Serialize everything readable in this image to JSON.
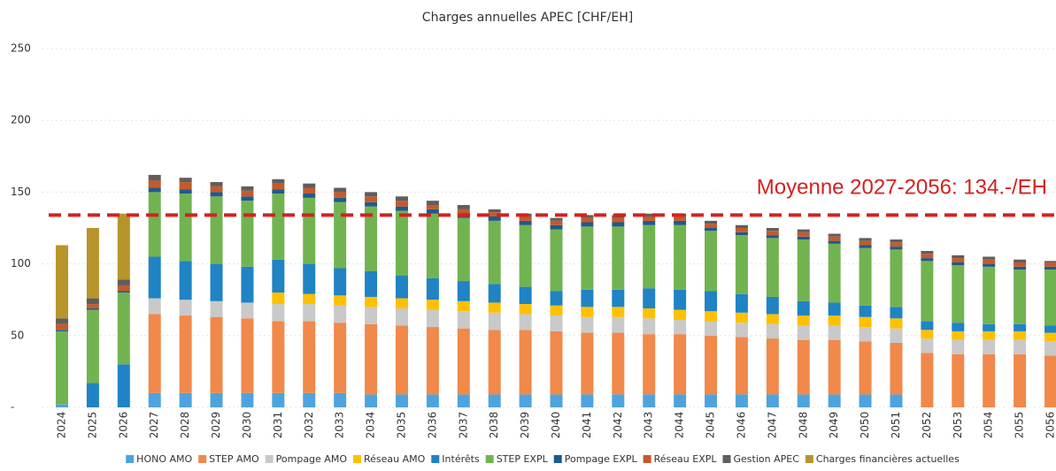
{
  "chart_data": {
    "type": "stacked_bar",
    "title": "Charges annuelles APEC [CHF/EH]",
    "annotation": "Moyenne 2027-2056: 134.-/EH",
    "mean_line": 134,
    "mean_line_color": "#d62020",
    "categories": [
      "2024",
      "2025",
      "2026",
      "2027",
      "2028",
      "2029",
      "2030",
      "2031",
      "2032",
      "2033",
      "2034",
      "2035",
      "2036",
      "2037",
      "2038",
      "2039",
      "2040",
      "2041",
      "2042",
      "2043",
      "2044",
      "2045",
      "2046",
      "2047",
      "2048",
      "2049",
      "2050",
      "2051",
      "2052",
      "2053",
      "2054",
      "2055",
      "2056"
    ],
    "ylim": [
      0,
      250
    ],
    "yticks": [
      {
        "value": 0,
        "label": "-"
      },
      50,
      100,
      150,
      200,
      250
    ],
    "grid": true,
    "series": [
      {
        "name": "HONO AMO",
        "color": "#4fa3dc",
        "values": [
          2,
          0,
          0,
          10,
          10,
          10,
          10,
          10,
          10,
          10,
          9,
          9,
          9,
          9,
          9,
          9,
          9,
          9,
          9,
          9,
          9,
          9,
          9,
          9,
          9,
          9,
          9,
          9,
          0,
          0,
          0,
          0,
          0
        ]
      },
      {
        "name": "STEP AMO",
        "color": "#f0894a",
        "values": [
          0,
          0,
          0,
          55,
          54,
          53,
          52,
          50,
          50,
          49,
          49,
          48,
          47,
          46,
          45,
          45,
          44,
          43,
          43,
          42,
          42,
          41,
          40,
          39,
          38,
          38,
          37,
          36,
          38,
          37,
          37,
          37,
          36
        ]
      },
      {
        "name": "Pompage AMO",
        "color": "#c9c9c9",
        "values": [
          0,
          0,
          0,
          11,
          11,
          11,
          11,
          12,
          12,
          12,
          12,
          12,
          12,
          12,
          12,
          11,
          11,
          11,
          11,
          11,
          10,
          10,
          10,
          10,
          10,
          10,
          10,
          10,
          10,
          10,
          10,
          10,
          10
        ]
      },
      {
        "name": "Réseau AMO",
        "color": "#ffc000",
        "values": [
          0,
          0,
          0,
          0,
          0,
          0,
          0,
          8,
          7,
          7,
          7,
          7,
          7,
          7,
          7,
          7,
          7,
          7,
          7,
          7,
          7,
          7,
          7,
          7,
          7,
          7,
          7,
          7,
          6,
          6,
          6,
          6,
          6
        ]
      },
      {
        "name": "Intérêts",
        "color": "#1f83c4",
        "values": [
          0,
          17,
          30,
          29,
          27,
          26,
          25,
          23,
          21,
          19,
          18,
          16,
          15,
          14,
          13,
          12,
          10,
          12,
          12,
          14,
          14,
          14,
          13,
          12,
          10,
          9,
          8,
          8,
          6,
          6,
          5,
          5,
          5
        ]
      },
      {
        "name": "STEP EXPL",
        "color": "#72b351",
        "values": [
          51,
          51,
          50,
          45,
          47,
          47,
          46,
          46,
          46,
          46,
          45,
          45,
          45,
          44,
          44,
          43,
          43,
          44,
          44,
          44,
          45,
          42,
          41,
          41,
          43,
          41,
          40,
          40,
          42,
          40,
          40,
          38,
          39
        ]
      },
      {
        "name": "Pompage EXPL",
        "color": "#1f5a8c",
        "values": [
          1,
          1,
          1,
          3,
          3,
          3,
          3,
          3,
          3,
          3,
          3,
          3,
          3,
          3,
          3,
          3,
          3,
          3,
          3,
          3,
          3,
          2,
          2,
          2,
          2,
          2,
          2,
          2,
          2,
          2,
          2,
          2,
          2
        ]
      },
      {
        "name": "Réseau EXPL",
        "color": "#c55a2b",
        "values": [
          4,
          3,
          4,
          5,
          5,
          4,
          4,
          4,
          4,
          4,
          4,
          4,
          3,
          3,
          3,
          3,
          3,
          3,
          3,
          3,
          3,
          3,
          3,
          3,
          3,
          3,
          3,
          3,
          3,
          3,
          3,
          3,
          3
        ]
      },
      {
        "name": "Gestion APEC",
        "color": "#5e5e5e",
        "values": [
          4,
          4,
          4,
          4,
          3,
          3,
          3,
          3,
          3,
          3,
          3,
          3,
          3,
          3,
          2,
          2,
          2,
          2,
          2,
          2,
          2,
          2,
          2,
          2,
          2,
          2,
          2,
          2,
          2,
          2,
          2,
          2,
          1
        ]
      },
      {
        "name": "Charges financières actuelles",
        "color": "#b8952a",
        "values": [
          51,
          49,
          46,
          0,
          0,
          0,
          0,
          0,
          0,
          0,
          0,
          0,
          0,
          0,
          0,
          0,
          0,
          0,
          0,
          0,
          0,
          0,
          0,
          0,
          0,
          0,
          0,
          0,
          0,
          0,
          0,
          0,
          0
        ]
      }
    ]
  }
}
